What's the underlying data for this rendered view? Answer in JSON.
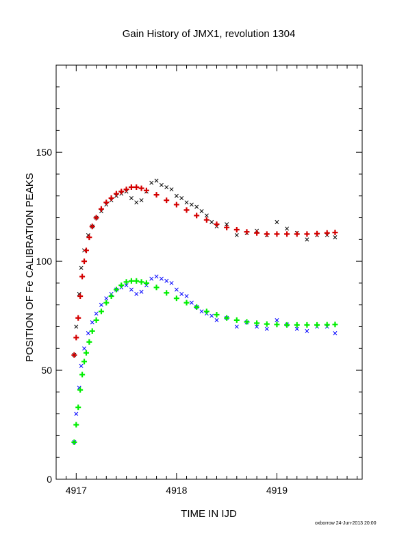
{
  "chart_data": {
    "type": "scatter",
    "title": "Gain History of JMX1, revolution 1304",
    "xlabel": "TIME IN IJD",
    "ylabel": "POSITION OF Fe CALIBRATION PEAKS",
    "xlim": [
      4916.8,
      4919.85
    ],
    "ylim": [
      0,
      190
    ],
    "xticks": [
      4917,
      4918,
      4919
    ],
    "yticks": [
      0,
      50,
      100,
      150
    ],
    "grid": false,
    "series": [
      {
        "color": "#000000",
        "marker": "x",
        "x": [
          4916.98,
          4917.0,
          4917.03,
          4917.05,
          4917.08,
          4917.12,
          4917.16,
          4917.2,
          4917.25,
          4917.3,
          4917.35,
          4917.4,
          4917.45,
          4917.5,
          4917.55,
          4917.6,
          4917.65,
          4917.7,
          4917.75,
          4917.8,
          4917.85,
          4917.9,
          4917.95,
          4918.0,
          4918.05,
          4918.1,
          4918.15,
          4918.2,
          4918.25,
          4918.3,
          4918.35,
          4918.4,
          4918.5,
          4918.6,
          4918.7,
          4918.8,
          4918.9,
          4919.0,
          4919.1,
          4919.2,
          4919.3,
          4919.4,
          4919.5,
          4919.58
        ],
        "y": [
          57,
          70,
          85,
          97,
          105,
          112,
          116,
          120,
          123,
          126,
          128,
          130,
          131,
          132,
          129,
          127,
          128,
          132,
          136,
          137,
          135,
          134,
          133,
          130,
          129,
          127,
          126,
          125,
          123,
          121,
          118,
          116,
          117,
          112,
          113,
          114,
          112,
          118,
          115,
          113,
          110,
          112,
          112,
          111
        ]
      },
      {
        "color": "#d40000",
        "marker": "+",
        "x": [
          4916.98,
          4917.0,
          4917.02,
          4917.04,
          4917.06,
          4917.08,
          4917.1,
          4917.13,
          4917.16,
          4917.2,
          4917.25,
          4917.3,
          4917.35,
          4917.4,
          4917.45,
          4917.5,
          4917.55,
          4917.6,
          4917.65,
          4917.7,
          4917.8,
          4917.9,
          4918.0,
          4918.1,
          4918.2,
          4918.3,
          4918.4,
          4918.5,
          4918.6,
          4918.7,
          4918.8,
          4918.9,
          4919.0,
          4919.1,
          4919.2,
          4919.3,
          4919.4,
          4919.5,
          4919.58
        ],
        "y": [
          57,
          65,
          74,
          84,
          93,
          100,
          105,
          111,
          116,
          120,
          124,
          127,
          129,
          131,
          132,
          133,
          134,
          134,
          133.5,
          132.5,
          130.5,
          128,
          126,
          123.5,
          121,
          119,
          117,
          115.5,
          114.5,
          113.5,
          113,
          112.5,
          112.5,
          112.5,
          112.5,
          112.5,
          112.7,
          113,
          113.2
        ]
      },
      {
        "color": "#0000ff",
        "marker": "x",
        "x": [
          4916.98,
          4917.0,
          4917.03,
          4917.05,
          4917.08,
          4917.12,
          4917.16,
          4917.2,
          4917.25,
          4917.3,
          4917.35,
          4917.4,
          4917.45,
          4917.5,
          4917.55,
          4917.6,
          4917.65,
          4917.7,
          4917.75,
          4917.8,
          4917.85,
          4917.9,
          4917.95,
          4918.0,
          4918.05,
          4918.1,
          4918.15,
          4918.2,
          4918.25,
          4918.3,
          4918.35,
          4918.4,
          4918.5,
          4918.6,
          4918.7,
          4918.8,
          4918.9,
          4919.0,
          4919.1,
          4919.2,
          4919.3,
          4919.4,
          4919.5,
          4919.58
        ],
        "y": [
          17,
          30,
          42,
          52,
          60,
          67,
          72,
          76,
          80,
          83,
          85,
          87,
          88,
          89,
          87,
          85,
          86,
          89,
          92,
          93,
          92,
          91,
          90,
          87,
          85,
          84,
          81,
          79,
          77,
          76,
          75,
          73,
          74,
          70,
          72,
          70,
          69,
          73,
          71,
          69,
          68,
          70,
          70,
          67
        ]
      },
      {
        "color": "#00ee00",
        "marker": "+",
        "x": [
          4916.98,
          4917.0,
          4917.02,
          4917.04,
          4917.06,
          4917.08,
          4917.1,
          4917.13,
          4917.16,
          4917.2,
          4917.25,
          4917.3,
          4917.35,
          4917.4,
          4917.45,
          4917.5,
          4917.55,
          4917.6,
          4917.65,
          4917.7,
          4917.8,
          4917.9,
          4918.0,
          4918.1,
          4918.2,
          4918.3,
          4918.4,
          4918.5,
          4918.6,
          4918.7,
          4918.8,
          4918.9,
          4919.0,
          4919.1,
          4919.2,
          4919.3,
          4919.4,
          4919.5,
          4919.58
        ],
        "y": [
          17,
          25,
          33,
          41,
          48,
          54,
          58,
          63,
          68,
          73,
          77,
          81,
          84,
          87,
          89,
          90.5,
          91,
          91,
          90.5,
          90,
          88,
          85.5,
          83,
          81,
          79,
          77,
          75.5,
          74,
          73,
          72.2,
          71.6,
          71.2,
          71,
          70.8,
          70.8,
          70.8,
          70.8,
          70.9,
          71
        ]
      }
    ]
  },
  "footer": "oxborrow 24-Jun-2013 20:00"
}
